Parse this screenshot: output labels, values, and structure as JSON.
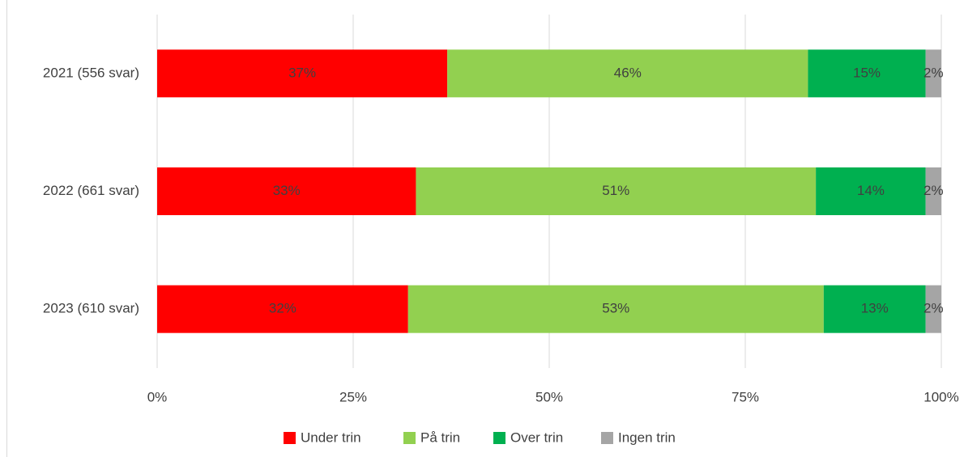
{
  "chart_data": {
    "type": "stacked-bar-horizontal",
    "categories": [
      "2021 (556 svar)",
      "2022 (661 svar)",
      "2023 (610 svar)"
    ],
    "series": [
      {
        "name": "Under trin",
        "color": "#ff0000",
        "values": [
          37,
          33,
          32
        ],
        "value_labels": [
          "37%",
          "33%",
          "32%"
        ]
      },
      {
        "name": "På trin",
        "color": "#92d050",
        "values": [
          46,
          51,
          53
        ],
        "value_labels": [
          "46%",
          "51%",
          "53%"
        ]
      },
      {
        "name": "Over trin",
        "color": "#00b050",
        "values": [
          15,
          14,
          13
        ],
        "value_labels": [
          "15%",
          "14%",
          "13%"
        ]
      },
      {
        "name": "Ingen trin",
        "color": "#a5a5a5",
        "values": [
          2,
          2,
          2
        ],
        "value_labels": [
          "2%",
          "2%",
          "2%"
        ]
      }
    ],
    "xlim": [
      0,
      100
    ],
    "xticks": [
      {
        "value": 0,
        "label": "0%"
      },
      {
        "value": 25,
        "label": "25%"
      },
      {
        "value": 50,
        "label": "50%"
      },
      {
        "value": 75,
        "label": "75%"
      },
      {
        "value": 100,
        "label": "100%"
      }
    ],
    "grid": true,
    "legend": "bottom"
  }
}
